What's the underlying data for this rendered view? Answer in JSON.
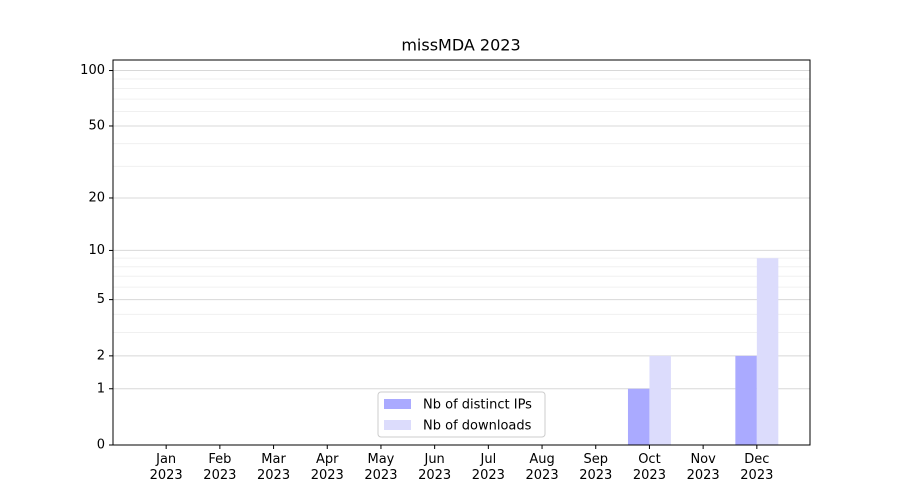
{
  "chart_data": {
    "type": "bar",
    "title": "missMDA 2023",
    "categories": [
      "Jan 2023",
      "Feb 2023",
      "Mar 2023",
      "Apr 2023",
      "May 2023",
      "Jun 2023",
      "Jul 2023",
      "Aug 2023",
      "Sep 2023",
      "Oct 2023",
      "Nov 2023",
      "Dec 2023"
    ],
    "series": [
      {
        "name": "Nb of distinct IPs",
        "color": "#aaaaff",
        "values": [
          0,
          0,
          0,
          0,
          0,
          0,
          0,
          0,
          0,
          1,
          0,
          2
        ]
      },
      {
        "name": "Nb of downloads",
        "color": "#dcdcfc",
        "values": [
          0,
          0,
          0,
          0,
          0,
          0,
          0,
          0,
          0,
          2,
          0,
          9
        ]
      }
    ],
    "yscale": "log1p",
    "ylim": [
      0,
      114
    ],
    "yticks": [
      0,
      1,
      2,
      5,
      10,
      20,
      50,
      100
    ],
    "minor_yticks": [
      3,
      4,
      6,
      7,
      8,
      9,
      30,
      40,
      60,
      70,
      80,
      90
    ],
    "grid": true,
    "legend": "lower center"
  }
}
